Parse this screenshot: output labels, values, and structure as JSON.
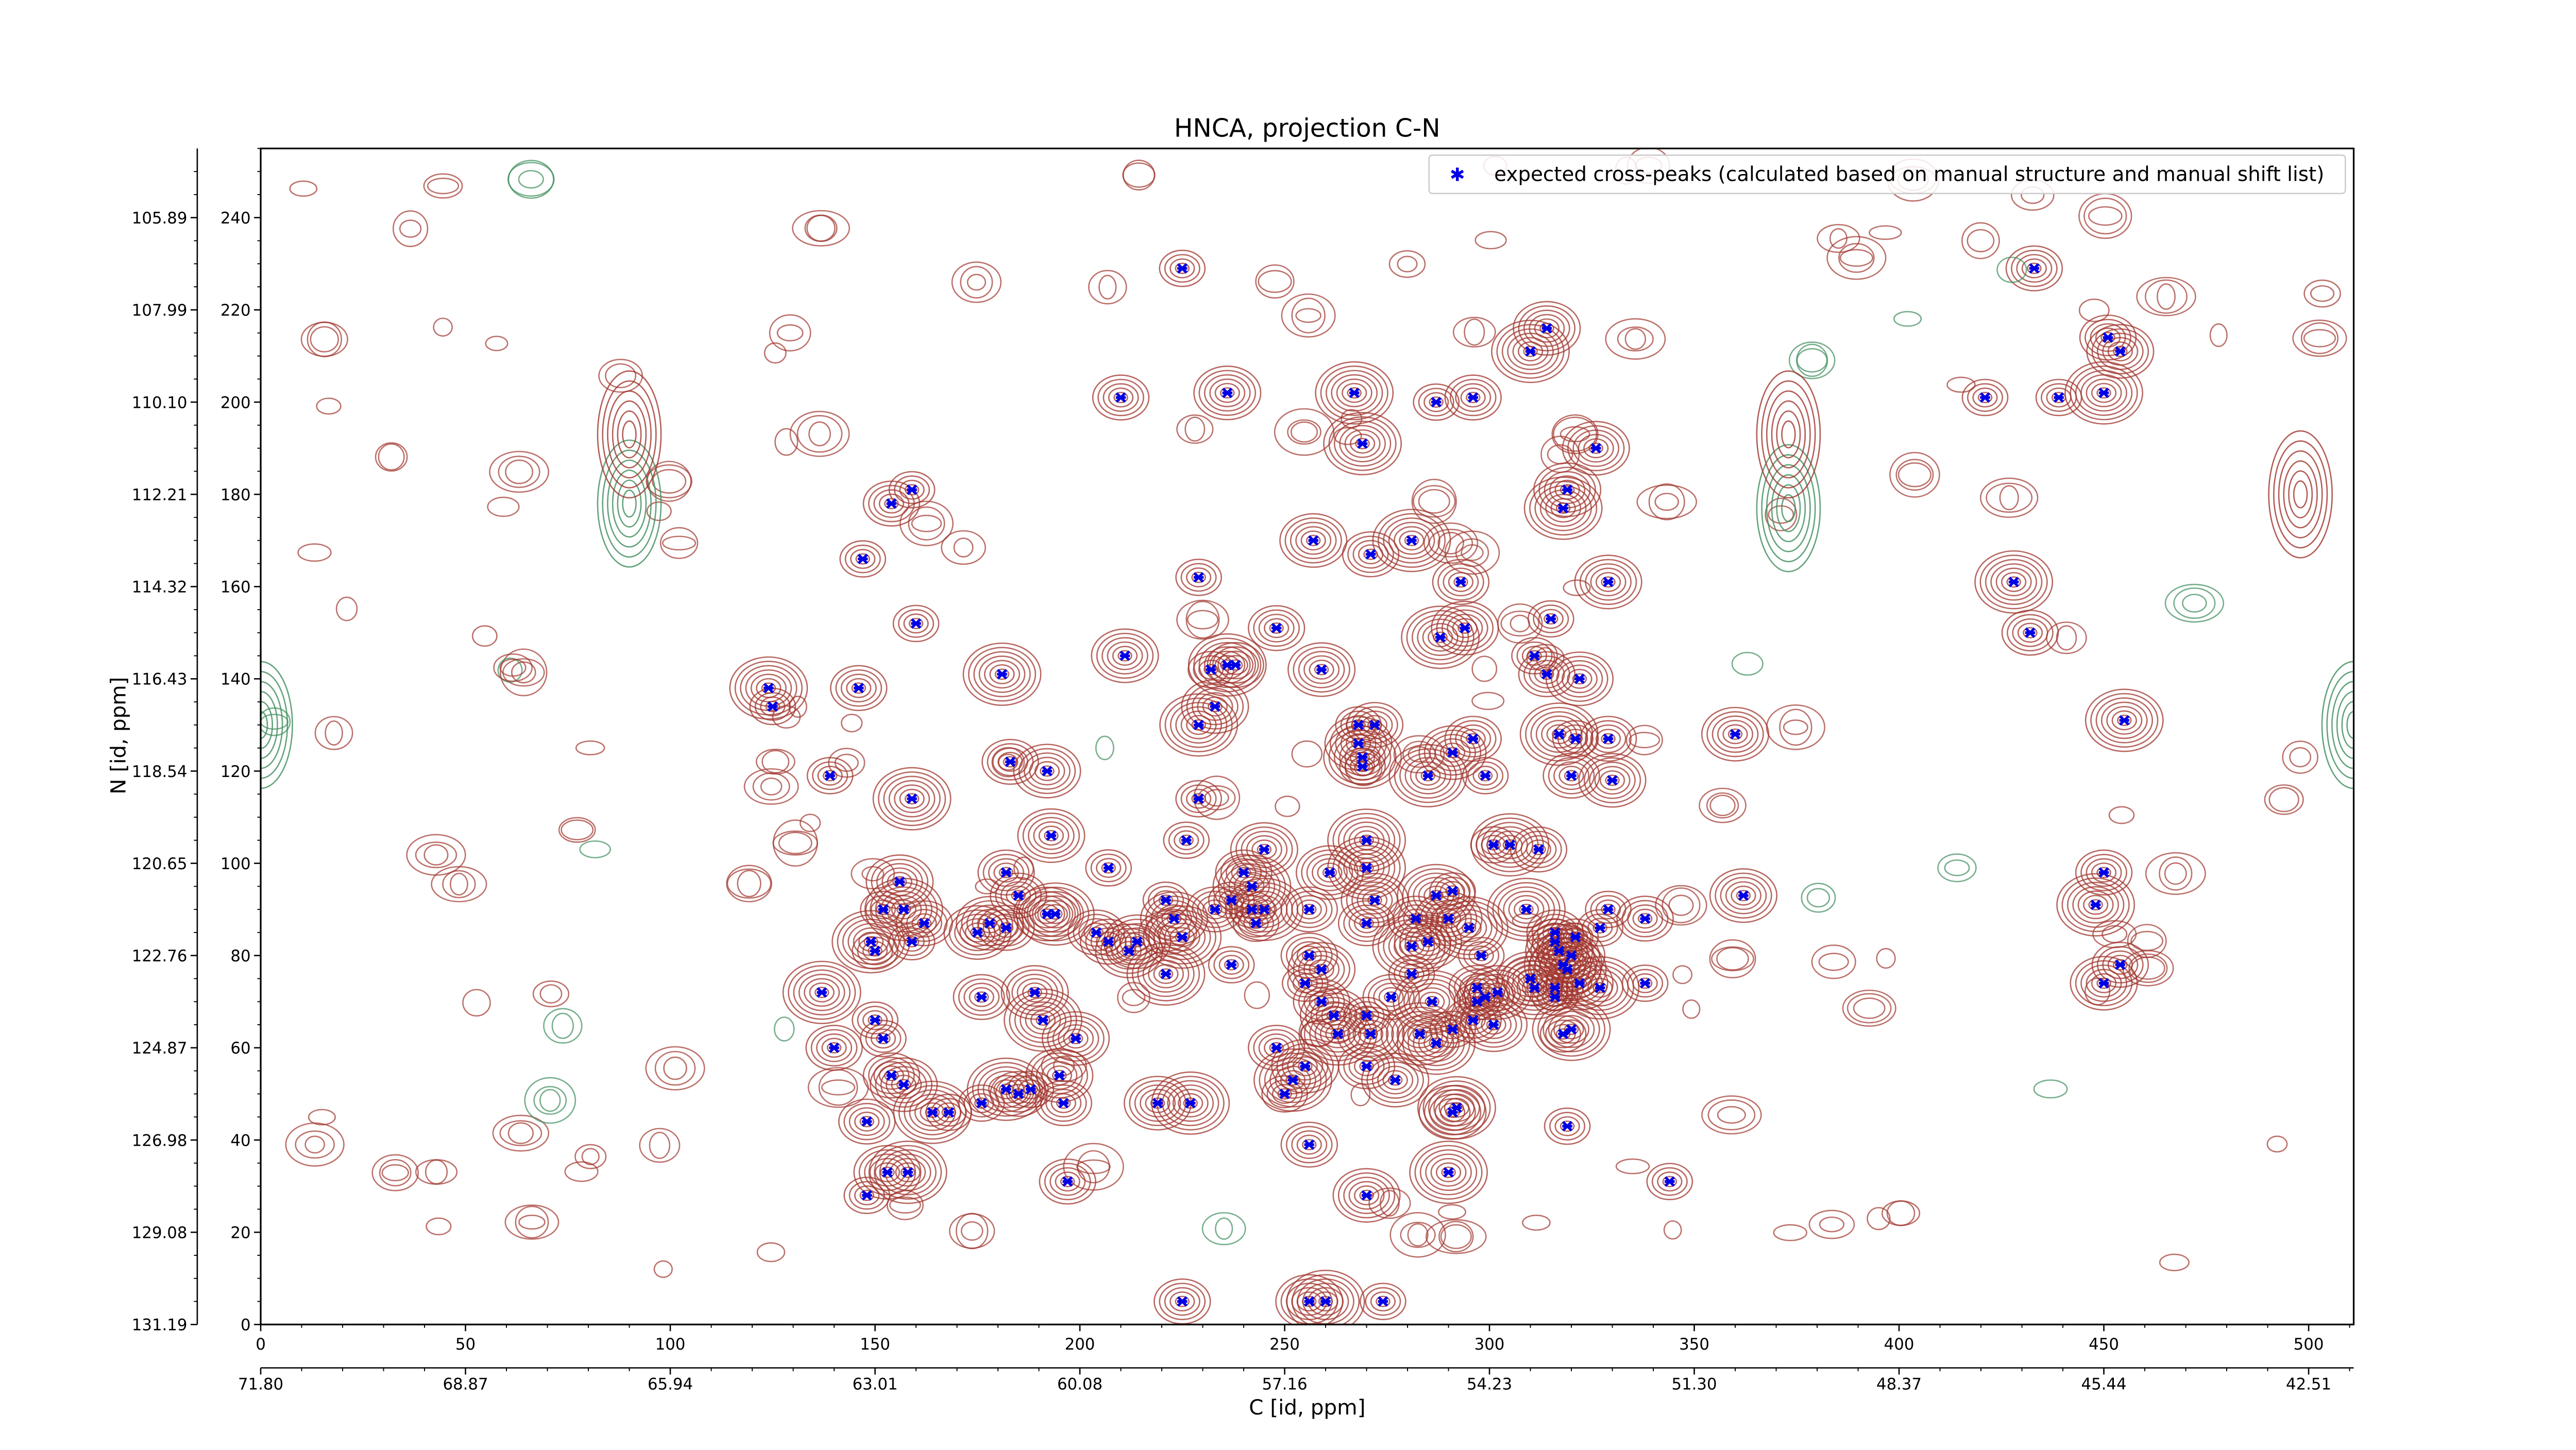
{
  "chart_data": {
    "type": "scatter",
    "title": "HNCA, projection C-N",
    "xlabel": "C [id, ppm]",
    "ylabel": "N [id, ppm]",
    "xlim": [
      0,
      511
    ],
    "ylim": [
      0,
      255
    ],
    "x_ticks": [
      0,
      50,
      100,
      150,
      200,
      250,
      300,
      350,
      400,
      450,
      500
    ],
    "y_ticks": [
      0,
      20,
      40,
      60,
      80,
      100,
      120,
      140,
      160,
      180,
      200,
      220,
      240
    ],
    "x_ppm_ticks": [
      {
        "pos": 0,
        "label": "71.80"
      },
      {
        "pos": 50,
        "label": "68.87"
      },
      {
        "pos": 100,
        "label": "65.94"
      },
      {
        "pos": 150,
        "label": "63.01"
      },
      {
        "pos": 200,
        "label": "60.08"
      },
      {
        "pos": 250,
        "label": "57.16"
      },
      {
        "pos": 300,
        "label": "54.23"
      },
      {
        "pos": 350,
        "label": "51.30"
      },
      {
        "pos": 400,
        "label": "48.37"
      },
      {
        "pos": 450,
        "label": "45.44"
      },
      {
        "pos": 500,
        "label": "42.51"
      }
    ],
    "y_ppm_ticks": [
      {
        "pos": 0,
        "label": "131.19"
      },
      {
        "pos": 20,
        "label": "129.08"
      },
      {
        "pos": 40,
        "label": "126.98"
      },
      {
        "pos": 60,
        "label": "124.87"
      },
      {
        "pos": 80,
        "label": "122.76"
      },
      {
        "pos": 100,
        "label": "120.65"
      },
      {
        "pos": 120,
        "label": "118.54"
      },
      {
        "pos": 140,
        "label": "116.43"
      },
      {
        "pos": 160,
        "label": "114.32"
      },
      {
        "pos": 180,
        "label": "112.21"
      },
      {
        "pos": 200,
        "label": "110.10"
      },
      {
        "pos": 220,
        "label": "107.99"
      },
      {
        "pos": 240,
        "label": "105.89"
      }
    ],
    "legend": {
      "position": "top-right",
      "label": "expected cross-peaks (calculated based on manual structure and manual shift list)"
    },
    "colors": {
      "marker": "#0000e6",
      "positive_contour": "#a0342c",
      "negative_contour": "#3c8c5a"
    },
    "grid": false,
    "series": [
      {
        "name": "expected cross-peaks (calculated based on manual structure and manual shift list)",
        "marker": "x",
        "points": [
          [
            225,
            229
          ],
          [
            433,
            229
          ],
          [
            314,
            216
          ],
          [
            310,
            211
          ],
          [
            421,
            201
          ],
          [
            451,
            214
          ],
          [
            454,
            211
          ],
          [
            450,
            202
          ],
          [
            439,
            201
          ],
          [
            210,
            201
          ],
          [
            236,
            202
          ],
          [
            267,
            202
          ],
          [
            287,
            200
          ],
          [
            296,
            201
          ],
          [
            326,
            190
          ],
          [
            269,
            191
          ],
          [
            159,
            181
          ],
          [
            154,
            178
          ],
          [
            319,
            181
          ],
          [
            318,
            177
          ],
          [
            147,
            166
          ],
          [
            271,
            167
          ],
          [
            257,
            170
          ],
          [
            281,
            170
          ],
          [
            229,
            162
          ],
          [
            293,
            161
          ],
          [
            329,
            161
          ],
          [
            428,
            161
          ],
          [
            160,
            152
          ],
          [
            248,
            151
          ],
          [
            294,
            151
          ],
          [
            288,
            149
          ],
          [
            315,
            153
          ],
          [
            432,
            150
          ],
          [
            211,
            145
          ],
          [
            236,
            143
          ],
          [
            232,
            142
          ],
          [
            238,
            143
          ],
          [
            259,
            142
          ],
          [
            181,
            141
          ],
          [
            311,
            145
          ],
          [
            314,
            141
          ],
          [
            322,
            140
          ],
          [
            124,
            138
          ],
          [
            125,
            134
          ],
          [
            146,
            138
          ],
          [
            233,
            134
          ],
          [
            229,
            130
          ],
          [
            268,
            130
          ],
          [
            272,
            130
          ],
          [
            268,
            126
          ],
          [
            269,
            123
          ],
          [
            269,
            121
          ],
          [
            296,
            127
          ],
          [
            291,
            124
          ],
          [
            317,
            128
          ],
          [
            321,
            127
          ],
          [
            329,
            127
          ],
          [
            360,
            128
          ],
          [
            455,
            131
          ],
          [
            139,
            119
          ],
          [
            183,
            122
          ],
          [
            192,
            120
          ],
          [
            285,
            119
          ],
          [
            299,
            119
          ],
          [
            320,
            119
          ],
          [
            330,
            118
          ],
          [
            159,
            114
          ],
          [
            229,
            114
          ],
          [
            450,
            98
          ],
          [
            193,
            106
          ],
          [
            305,
            104
          ],
          [
            301,
            104
          ],
          [
            312,
            103
          ],
          [
            245,
            103
          ],
          [
            270,
            105
          ],
          [
            226,
            105
          ],
          [
            240,
            98
          ],
          [
            261,
            98
          ],
          [
            270,
            99
          ],
          [
            207,
            99
          ],
          [
            182,
            98
          ],
          [
            156,
            96
          ],
          [
            157,
            90
          ],
          [
            152,
            90
          ],
          [
            162,
            87
          ],
          [
            178,
            87
          ],
          [
            242,
            95
          ],
          [
            237,
            92
          ],
          [
            233,
            90
          ],
          [
            223,
            88
          ],
          [
            245,
            90
          ],
          [
            242,
            90
          ],
          [
            256,
            90
          ],
          [
            272,
            92
          ],
          [
            287,
            93
          ],
          [
            291,
            94
          ],
          [
            282,
            88
          ],
          [
            290,
            88
          ],
          [
            309,
            90
          ],
          [
            329,
            90
          ],
          [
            185,
            93
          ],
          [
            192,
            89
          ],
          [
            194,
            89
          ],
          [
            221,
            92
          ],
          [
            182,
            86
          ],
          [
            175,
            85
          ],
          [
            149,
            83
          ],
          [
            159,
            83
          ],
          [
            207,
            83
          ],
          [
            214,
            83
          ],
          [
            225,
            84
          ],
          [
            243,
            87
          ],
          [
            270,
            87
          ],
          [
            285,
            83
          ],
          [
            295,
            86
          ],
          [
            321,
            84
          ],
          [
            316,
            83
          ],
          [
            320,
            80
          ],
          [
            318,
            78
          ],
          [
            327,
            86
          ],
          [
            338,
            88
          ],
          [
            362,
            93
          ],
          [
            448,
            91
          ],
          [
            150,
            81
          ],
          [
            204,
            85
          ],
          [
            212,
            81
          ],
          [
            221,
            76
          ],
          [
            237,
            78
          ],
          [
            256,
            80
          ],
          [
            259,
            77
          ],
          [
            281,
            82
          ],
          [
            298,
            80
          ],
          [
            316,
            85
          ],
          [
            317,
            81
          ],
          [
            319,
            77
          ],
          [
            255,
            74
          ],
          [
            259,
            70
          ],
          [
            262,
            67
          ],
          [
            263,
            63
          ],
          [
            270,
            67
          ],
          [
            276,
            71
          ],
          [
            271,
            63
          ],
          [
            283,
            63
          ],
          [
            297,
            70
          ],
          [
            299,
            71
          ],
          [
            302,
            72
          ],
          [
            286,
            70
          ],
          [
            281,
            76
          ],
          [
            297,
            73
          ],
          [
            310,
            75
          ],
          [
            311,
            73
          ],
          [
            316,
            71
          ],
          [
            316,
            73
          ],
          [
            322,
            74
          ],
          [
            327,
            73
          ],
          [
            338,
            74
          ],
          [
            270,
            56
          ],
          [
            277,
            53
          ],
          [
            287,
            61
          ],
          [
            291,
            64
          ],
          [
            296,
            66
          ],
          [
            301,
            65
          ],
          [
            320,
            64
          ],
          [
            318,
            63
          ],
          [
            248,
            60
          ],
          [
            255,
            56
          ],
          [
            137,
            72
          ],
          [
            150,
            66
          ],
          [
            176,
            71
          ],
          [
            189,
            72
          ],
          [
            191,
            66
          ],
          [
            152,
            62
          ],
          [
            140,
            60
          ],
          [
            199,
            62
          ],
          [
            252,
            53
          ],
          [
            250,
            50
          ],
          [
            154,
            54
          ],
          [
            157,
            52
          ],
          [
            182,
            51
          ],
          [
            188,
            51
          ],
          [
            185,
            50
          ],
          [
            195,
            54
          ],
          [
            164,
            46
          ],
          [
            176,
            48
          ],
          [
            196,
            48
          ],
          [
            219,
            48
          ],
          [
            227,
            48
          ],
          [
            168,
            46
          ],
          [
            148,
            44
          ],
          [
            291,
            46
          ],
          [
            292,
            47
          ],
          [
            319,
            43
          ],
          [
            256,
            39
          ],
          [
            153,
            33
          ],
          [
            158,
            33
          ],
          [
            148,
            28
          ],
          [
            197,
            31
          ],
          [
            270,
            28
          ],
          [
            290,
            33
          ],
          [
            344,
            31
          ],
          [
            225,
            5
          ],
          [
            256,
            5
          ],
          [
            260,
            5
          ],
          [
            274,
            5
          ],
          [
            454,
            78
          ],
          [
            450,
            74
          ]
        ]
      }
    ]
  }
}
